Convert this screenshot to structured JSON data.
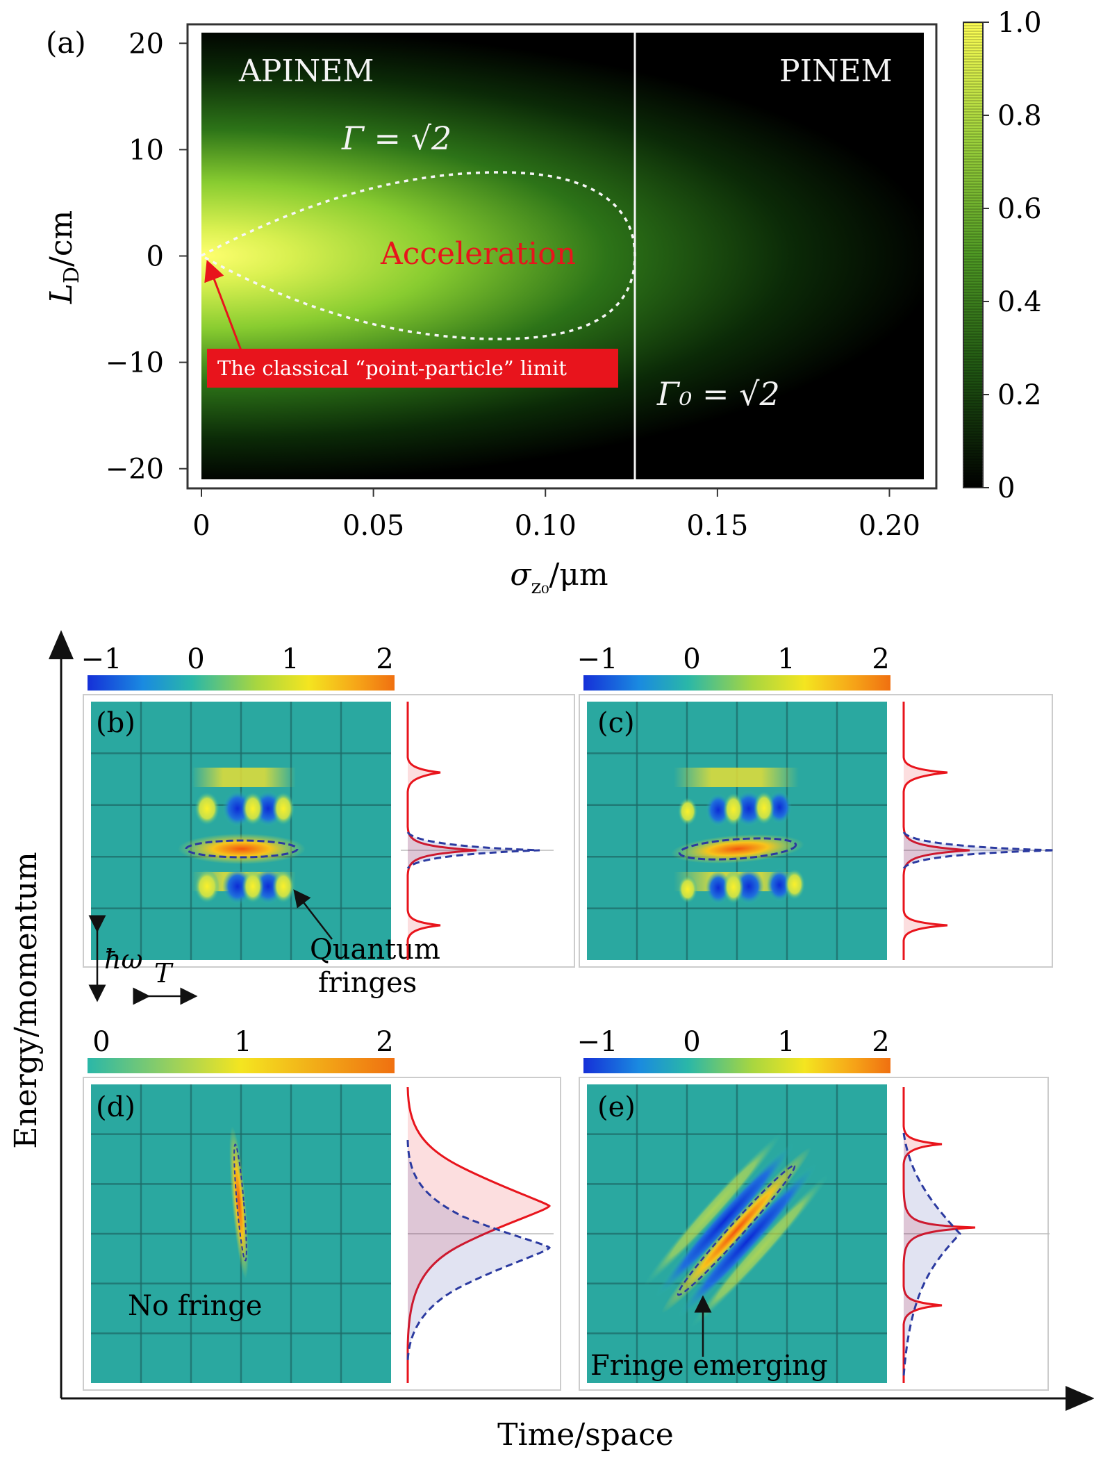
{
  "panel_a": {
    "label": "(a)",
    "ylabel_main": "L",
    "ylabel_sub": "D",
    "ylabel_unit": "/cm",
    "xlabel_main": "σ",
    "xlabel_sub": "z₀",
    "xlabel_unit": "/μm",
    "region_left": "APINEM",
    "region_right": "PINEM",
    "gamma_text": "Γ = √2",
    "gamma0_text": "Γ₀ = √2",
    "accel_text": "Acceleration",
    "limit_text": "The classical “point-particle” limit",
    "colors": {
      "accent_red": "#e8141c",
      "divider": "#ffffff"
    }
  },
  "chart_data": [
    {
      "type": "heatmap",
      "panel": "a",
      "x": {
        "ticks": [
          0,
          0.05,
          0.1,
          0.15,
          0.2
        ],
        "tick_labels": [
          "0",
          "0.05",
          "0.10",
          "0.15",
          "0.20"
        ],
        "range": [
          0,
          0.21
        ]
      },
      "y": {
        "ticks": [
          20,
          10,
          0,
          -10,
          -20
        ],
        "tick_labels": [
          "20",
          "10",
          "0",
          "−10",
          "−20"
        ],
        "range": [
          -21,
          21
        ]
      },
      "colorbar": {
        "ticks": [
          0,
          0.2,
          0.4,
          0.6,
          0.8,
          1.0
        ],
        "tick_labels": [
          "0",
          "0.2",
          "0.4",
          "0.6",
          "0.8",
          "1.0"
        ],
        "range": [
          0,
          1
        ]
      },
      "divider_x": 0.126,
      "acceleration_contour": {
        "x_max": 0.126,
        "y_half_max": 7.8
      }
    },
    {
      "type": "heatmap",
      "panel": "b",
      "label": "(b)",
      "colorbar": {
        "tick_labels": [
          "−1",
          "0",
          "1",
          "2"
        ],
        "range": [
          -1,
          2
        ]
      },
      "annotation": "Quantum\nfringes",
      "annotation_lines": [
        "Quantum",
        "fringes"
      ],
      "scale_labels": [
        "ħω",
        "T"
      ]
    },
    {
      "type": "heatmap",
      "panel": "c",
      "label": "(c)",
      "colorbar": {
        "tick_labels": [
          "−1",
          "0",
          "1",
          "2"
        ],
        "range": [
          -1,
          2
        ]
      }
    },
    {
      "type": "heatmap",
      "panel": "d",
      "label": "(d)",
      "colorbar": {
        "tick_labels": [
          "0",
          "1",
          "2"
        ],
        "range": [
          0,
          2
        ]
      },
      "annotation": "No fringe"
    },
    {
      "type": "heatmap",
      "panel": "e",
      "label": "(e)",
      "colorbar": {
        "tick_labels": [
          "−1",
          "0",
          "1",
          "2"
        ],
        "range": [
          -1,
          2
        ]
      },
      "annotation": "Fringe emerging"
    }
  ],
  "bottom_axes": {
    "xlabel": "Time/space",
    "ylabel": "Energy/momentum"
  }
}
